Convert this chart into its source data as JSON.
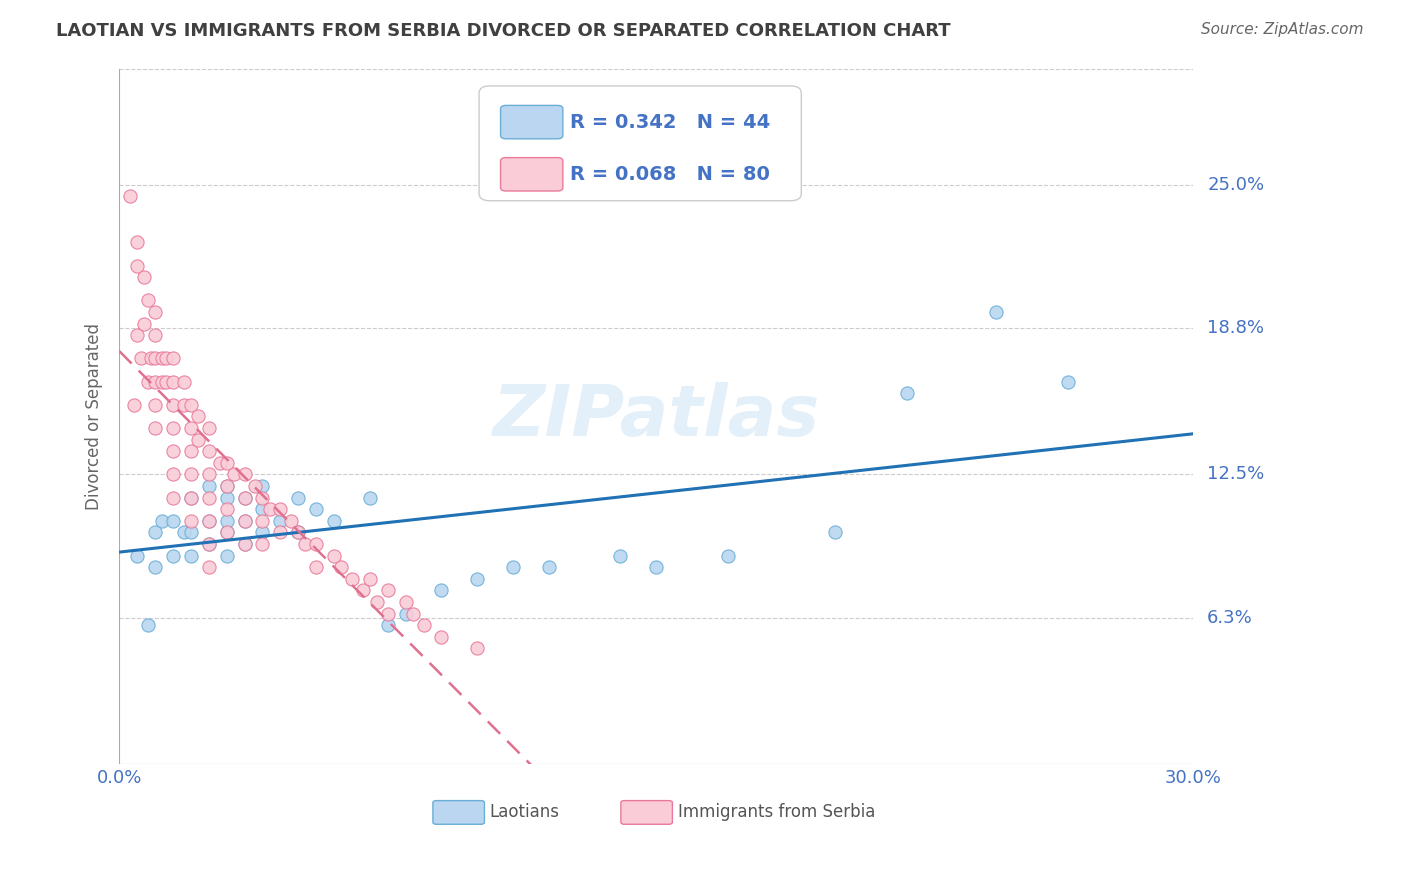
{
  "title": "LAOTIAN VS IMMIGRANTS FROM SERBIA DIVORCED OR SEPARATED CORRELATION CHART",
  "source": "Source: ZipAtlas.com",
  "ylabel": "Divorced or Separated",
  "xlim": [
    0.0,
    0.3
  ],
  "ylim": [
    0.0,
    0.3
  ],
  "yticks": [
    0.063,
    0.125,
    0.188,
    0.25
  ],
  "ytick_labels": [
    "6.3%",
    "12.5%",
    "18.8%",
    "25.0%"
  ],
  "series1_name": "Laotians",
  "series2_name": "Immigrants from Serbia",
  "series1_fill": "#bad6f0",
  "series1_edge": "#6aaed6",
  "series2_fill": "#f9ccd8",
  "series2_edge": "#e87a9a",
  "trend1_color": "#2171b5",
  "trend2_color": "#e07090",
  "background_color": "#ffffff",
  "grid_color": "#cccccc",
  "title_color": "#404040",
  "axis_color": "#4472c4",
  "watermark": "ZIPatlas",
  "laotian_x": [
    0.005,
    0.008,
    0.01,
    0.01,
    0.012,
    0.015,
    0.015,
    0.018,
    0.02,
    0.02,
    0.02,
    0.025,
    0.025,
    0.025,
    0.03,
    0.03,
    0.03,
    0.03,
    0.03,
    0.035,
    0.035,
    0.035,
    0.04,
    0.04,
    0.04,
    0.045,
    0.05,
    0.05,
    0.055,
    0.06,
    0.07,
    0.075,
    0.08,
    0.09,
    0.1,
    0.11,
    0.12,
    0.14,
    0.15,
    0.17,
    0.2,
    0.22,
    0.245,
    0.265
  ],
  "laotian_y": [
    0.09,
    0.06,
    0.085,
    0.1,
    0.105,
    0.09,
    0.105,
    0.1,
    0.09,
    0.1,
    0.115,
    0.095,
    0.105,
    0.12,
    0.09,
    0.1,
    0.105,
    0.115,
    0.12,
    0.095,
    0.105,
    0.115,
    0.1,
    0.11,
    0.12,
    0.105,
    0.1,
    0.115,
    0.11,
    0.105,
    0.115,
    0.06,
    0.065,
    0.075,
    0.08,
    0.085,
    0.085,
    0.09,
    0.085,
    0.09,
    0.1,
    0.16,
    0.195,
    0.165
  ],
  "serbia_x": [
    0.003,
    0.004,
    0.005,
    0.005,
    0.005,
    0.006,
    0.007,
    0.007,
    0.008,
    0.008,
    0.009,
    0.01,
    0.01,
    0.01,
    0.01,
    0.01,
    0.01,
    0.012,
    0.012,
    0.013,
    0.013,
    0.015,
    0.015,
    0.015,
    0.015,
    0.015,
    0.015,
    0.015,
    0.018,
    0.018,
    0.02,
    0.02,
    0.02,
    0.02,
    0.02,
    0.02,
    0.022,
    0.022,
    0.025,
    0.025,
    0.025,
    0.025,
    0.025,
    0.025,
    0.025,
    0.028,
    0.03,
    0.03,
    0.03,
    0.03,
    0.032,
    0.035,
    0.035,
    0.035,
    0.035,
    0.038,
    0.04,
    0.04,
    0.04,
    0.042,
    0.045,
    0.045,
    0.048,
    0.05,
    0.052,
    0.055,
    0.055,
    0.06,
    0.062,
    0.065,
    0.068,
    0.07,
    0.072,
    0.075,
    0.075,
    0.08,
    0.082,
    0.085,
    0.09,
    0.1
  ],
  "serbia_y": [
    0.245,
    0.155,
    0.215,
    0.225,
    0.185,
    0.175,
    0.21,
    0.19,
    0.165,
    0.2,
    0.175,
    0.195,
    0.185,
    0.175,
    0.165,
    0.155,
    0.145,
    0.175,
    0.165,
    0.175,
    0.165,
    0.175,
    0.165,
    0.155,
    0.145,
    0.135,
    0.125,
    0.115,
    0.165,
    0.155,
    0.155,
    0.145,
    0.135,
    0.125,
    0.115,
    0.105,
    0.15,
    0.14,
    0.145,
    0.135,
    0.125,
    0.115,
    0.105,
    0.095,
    0.085,
    0.13,
    0.13,
    0.12,
    0.11,
    0.1,
    0.125,
    0.125,
    0.115,
    0.105,
    0.095,
    0.12,
    0.115,
    0.105,
    0.095,
    0.11,
    0.11,
    0.1,
    0.105,
    0.1,
    0.095,
    0.095,
    0.085,
    0.09,
    0.085,
    0.08,
    0.075,
    0.08,
    0.07,
    0.075,
    0.065,
    0.07,
    0.065,
    0.06,
    0.055,
    0.05
  ]
}
